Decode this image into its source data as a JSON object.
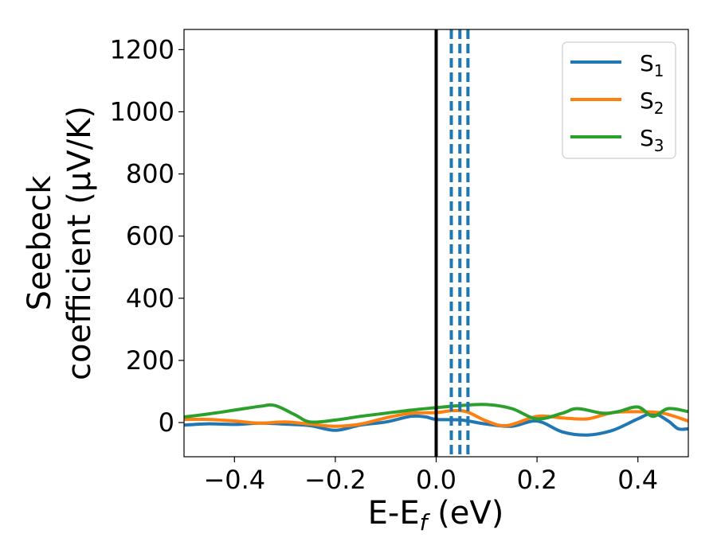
{
  "chart_data": {
    "type": "line",
    "xlabel": "E-E_f (eV)",
    "ylabel_lines": [
      "Seebeck",
      "coefficient  (μV/K)"
    ],
    "xlim": [
      -0.5,
      0.5
    ],
    "ylim": [
      -110,
      1265
    ],
    "x_ticks": [
      -0.4,
      -0.2,
      0.0,
      0.2,
      0.4
    ],
    "x_tick_labels": [
      "−0.4",
      "−0.2",
      "0.0",
      "0.2",
      "0.4"
    ],
    "y_ticks": [
      0,
      200,
      400,
      600,
      800,
      1000,
      1200
    ],
    "y_tick_labels": [
      "0",
      "200",
      "400",
      "600",
      "800",
      "1000",
      "1200"
    ],
    "grid": false,
    "legend_position": "top-right",
    "series": [
      {
        "name": "S",
        "subscript": "1",
        "color": "#1f77b4",
        "x": [
          -0.5,
          -0.45,
          -0.4,
          -0.35,
          -0.3,
          -0.25,
          -0.2,
          -0.15,
          -0.1,
          -0.05,
          -0.02,
          0.0,
          0.05,
          0.1,
          0.15,
          0.2,
          0.25,
          0.3,
          0.35,
          0.4,
          0.43,
          0.46,
          0.48,
          0.5
        ],
        "y": [
          -8,
          -4,
          -6,
          -2,
          -5,
          -10,
          -25,
          -8,
          2,
          20,
          18,
          10,
          8,
          -5,
          -12,
          5,
          -30,
          -40,
          -25,
          12,
          30,
          5,
          -20,
          -20
        ]
      },
      {
        "name": "S",
        "subscript": "2",
        "color": "#ff7f0e",
        "x": [
          -0.5,
          -0.45,
          -0.4,
          -0.35,
          -0.3,
          -0.25,
          -0.2,
          -0.15,
          -0.1,
          -0.05,
          0.0,
          0.03,
          0.06,
          0.1,
          0.14,
          0.2,
          0.25,
          0.3,
          0.35,
          0.4,
          0.45,
          0.5
        ],
        "y": [
          10,
          10,
          5,
          -2,
          2,
          -5,
          -12,
          -5,
          15,
          30,
          32,
          38,
          35,
          5,
          -10,
          20,
          15,
          12,
          32,
          35,
          30,
          5
        ]
      },
      {
        "name": "S",
        "subscript": "3",
        "color": "#2ca02c",
        "x": [
          -0.5,
          -0.45,
          -0.4,
          -0.35,
          -0.32,
          -0.28,
          -0.25,
          -0.2,
          -0.15,
          -0.1,
          -0.05,
          0.0,
          0.05,
          0.1,
          0.15,
          0.2,
          0.25,
          0.28,
          0.33,
          0.36,
          0.4,
          0.43,
          0.46,
          0.5
        ],
        "y": [
          18,
          28,
          40,
          52,
          55,
          25,
          2,
          8,
          20,
          30,
          40,
          48,
          55,
          58,
          45,
          12,
          30,
          45,
          30,
          35,
          50,
          20,
          45,
          35
        ]
      }
    ],
    "vlines": [
      {
        "x": 0.0,
        "color": "#000000",
        "style": "solid"
      },
      {
        "x": 0.03,
        "color": "#1f77b4",
        "style": "dashed"
      },
      {
        "x": 0.047,
        "color": "#1f77b4",
        "style": "dashed"
      },
      {
        "x": 0.063,
        "color": "#1f77b4",
        "style": "dashed"
      }
    ]
  }
}
